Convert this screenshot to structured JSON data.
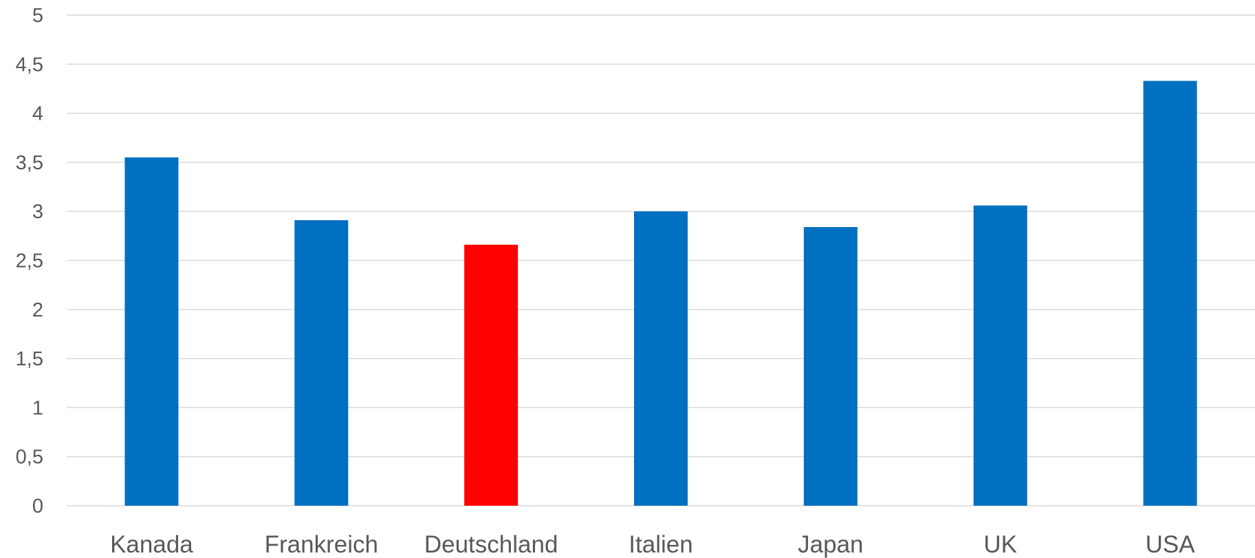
{
  "chart_data": {
    "type": "bar",
    "title": "",
    "xlabel": "",
    "ylabel": "",
    "categories": [
      "Kanada",
      "Frankreich",
      "Deutschland",
      "Italien",
      "Japan",
      "UK",
      "USA"
    ],
    "values": [
      3.55,
      2.91,
      2.66,
      3.0,
      2.84,
      3.06,
      4.33
    ],
    "ylim": [
      0,
      5
    ],
    "yticks": [
      0,
      0.5,
      1,
      1.5,
      2,
      2.5,
      3,
      3.5,
      4,
      4.5,
      5
    ],
    "ytick_labels": [
      "0",
      "0,5",
      "1",
      "1,5",
      "2",
      "2,5",
      "3",
      "3,5",
      "4",
      "4,5",
      "5"
    ],
    "grid": true,
    "legend": "none",
    "colors": {
      "default_bar": "#0070c0",
      "highlight_bar": "#ff0000",
      "highlight_category": "Deutschland",
      "gridline": "#d9d9d9",
      "text": "#595959"
    }
  }
}
